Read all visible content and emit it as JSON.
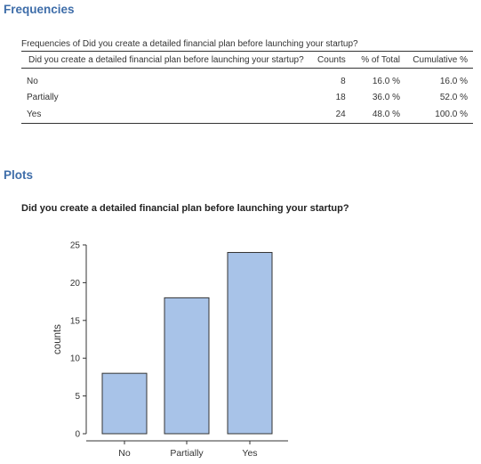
{
  "sections": {
    "frequencies_title": "Frequencies",
    "plots_title": "Plots"
  },
  "frequency_table": {
    "caption": "Frequencies of Did you create a detailed financial plan before launching your startup?",
    "headers": {
      "question": "Did you create a detailed financial plan before launching your startup?",
      "counts": "Counts",
      "pct_total": "% of Total",
      "cumulative": "Cumulative %"
    },
    "rows": [
      {
        "level": "No",
        "counts": "8",
        "pct_total": "16.0 %",
        "cumulative": "16.0 %"
      },
      {
        "level": "Partially",
        "counts": "18",
        "pct_total": "36.0 %",
        "cumulative": "52.0 %"
      },
      {
        "level": "Yes",
        "counts": "24",
        "pct_total": "48.0 %",
        "cumulative": "100.0 %"
      }
    ]
  },
  "chart_data": {
    "type": "bar",
    "title": "Did you create a detailed financial plan before launching your startup?",
    "categories": [
      "No",
      "Partially",
      "Yes"
    ],
    "values": [
      8,
      18,
      24
    ],
    "xlabel": "",
    "ylabel": "counts",
    "ylim": [
      0,
      25
    ],
    "yticks": [
      0,
      5,
      10,
      15,
      20,
      25
    ],
    "grid": false,
    "bar_color": "#a8c3e8",
    "bar_edge_color": "#333333"
  }
}
